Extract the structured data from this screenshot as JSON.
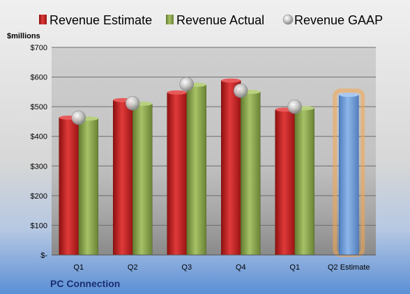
{
  "chart_data": {
    "type": "bar",
    "company": "PC Connection",
    "ylabel": "$millions",
    "ylim": [
      0,
      700
    ],
    "yticks": [
      0,
      100,
      200,
      300,
      400,
      500,
      600,
      700
    ],
    "ytick_labels": [
      "$-",
      "$100",
      "$200",
      "$300",
      "$400",
      "$500",
      "$600",
      "$700"
    ],
    "categories": [
      "Q1",
      "Q2",
      "Q3",
      "Q4",
      "Q1",
      "Q2 Estimate"
    ],
    "series": [
      {
        "name": "Revenue Estimate",
        "mark": "bar",
        "values": [
          463,
          522,
          548,
          588,
          490,
          null
        ]
      },
      {
        "name": "Revenue Actual",
        "mark": "bar",
        "values": [
          460,
          510,
          574,
          550,
          495,
          null
        ]
      },
      {
        "name": "Revenue GAAP",
        "mark": "point",
        "values": [
          463,
          512,
          576,
          554,
          500,
          null
        ]
      }
    ],
    "forecast": {
      "category": "Q2 Estimate",
      "value": 540
    },
    "legend": "top",
    "grid": true,
    "colors": {
      "estimate": "#cc1f1f",
      "actual": "#8eaa4e",
      "gaap": "#c0c0c0",
      "forecast": "#6f9fd8",
      "forecast_glow": "#f5a54a"
    }
  }
}
